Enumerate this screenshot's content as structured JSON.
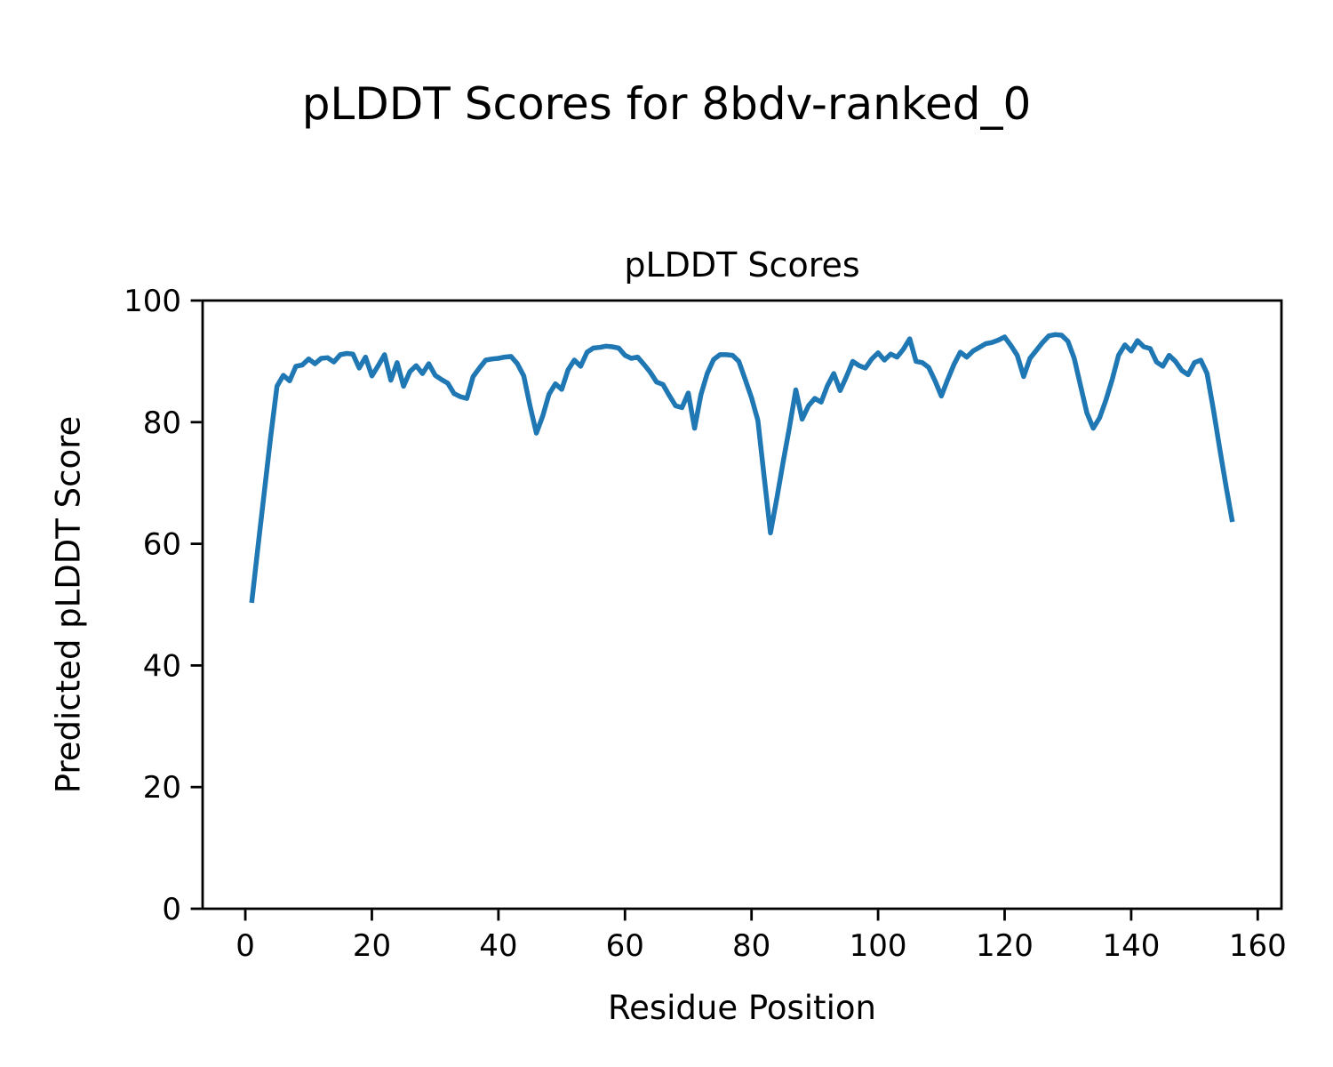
{
  "figure": {
    "title": "pLDDT Scores for 8bdv-ranked_0",
    "background_color": "#ffffff",
    "text_color": "#000000"
  },
  "chart_data": {
    "type": "line",
    "title": "pLDDT Scores",
    "xlabel": "Residue Position",
    "ylabel": "Predicted pLDDT Score",
    "x_ticks": [
      0,
      20,
      40,
      60,
      80,
      100,
      120,
      140,
      160
    ],
    "y_ticks": [
      0,
      20,
      40,
      60,
      80,
      100
    ],
    "xlim": [
      -6.75,
      163.75
    ],
    "ylim": [
      0,
      100
    ],
    "grid": false,
    "legend": "none",
    "line_color": "#1f77b4",
    "axes_color": "#000000",
    "series": [
      {
        "name": "pLDDT",
        "x_start": 1,
        "x_step": 1,
        "n_points": 156,
        "values": [
          50.3,
          59.5,
          68.5,
          77.5,
          85.9,
          87.7,
          86.8,
          89.2,
          89.4,
          90.4,
          89.6,
          90.5,
          90.6,
          89.9,
          91.1,
          91.3,
          91.2,
          88.9,
          90.7,
          87.6,
          89.3,
          91.1,
          86.9,
          89.8,
          85.9,
          88.3,
          89.3,
          88.0,
          89.6,
          87.7,
          87.0,
          86.4,
          84.7,
          84.2,
          83.9,
          87.5,
          88.9,
          90.2,
          90.4,
          90.5,
          90.7,
          90.8,
          89.6,
          87.6,
          82.6,
          78.2,
          81.0,
          84.6,
          86.3,
          85.4,
          88.6,
          90.2,
          89.2,
          91.5,
          92.2,
          92.3,
          92.5,
          92.4,
          92.2,
          91.0,
          90.5,
          90.7,
          89.5,
          88.2,
          86.6,
          86.2,
          84.4,
          82.7,
          82.4,
          84.8,
          79.0,
          84.5,
          88.0,
          90.3,
          91.1,
          91.1,
          91.0,
          90.0,
          87.0,
          84.0,
          80.3,
          71.0,
          61.8,
          67.5,
          73.5,
          79.2,
          85.3,
          80.5,
          82.7,
          83.9,
          83.3,
          86.0,
          88.0,
          85.2,
          87.5,
          90.0,
          89.3,
          88.9,
          90.4,
          91.4,
          90.2,
          91.2,
          90.7,
          92.0,
          93.7,
          90.0,
          89.8,
          89.0,
          86.8,
          84.3,
          87.0,
          89.5,
          91.5,
          90.7,
          91.7,
          92.3,
          92.9,
          93.1,
          93.5,
          94.0,
          92.6,
          91.0,
          87.5,
          90.5,
          91.8,
          93.1,
          94.2,
          94.4,
          94.3,
          93.3,
          90.5,
          86.0,
          81.5,
          79.0,
          80.7,
          83.6,
          87.0,
          91.0,
          92.7,
          91.7,
          93.4,
          92.4,
          92.1,
          89.9,
          89.2,
          91.0,
          90.0,
          88.5,
          87.8,
          89.8,
          90.2,
          88.0,
          82.0,
          75.6,
          69.4,
          63.6
        ]
      }
    ]
  }
}
